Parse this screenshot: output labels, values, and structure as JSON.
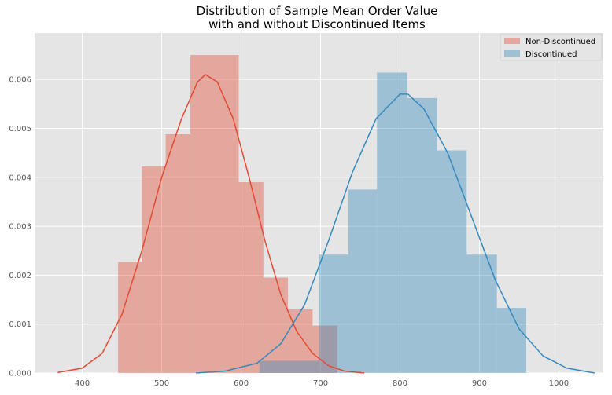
{
  "chart_data": {
    "type": "histogram",
    "title": [
      "Distribution of Sample Mean Order Value",
      "with and without Discontinued Items"
    ],
    "xlabel": "",
    "ylabel": "",
    "xlim": [
      340,
      1056
    ],
    "ylim": [
      0,
      0.00695
    ],
    "xticks": [
      400,
      500,
      600,
      700,
      800,
      900,
      1000
    ],
    "yticks": [
      0.0,
      0.001,
      0.002,
      0.003,
      0.004,
      0.005,
      0.006
    ],
    "ytick_labels": [
      "0.000",
      "0.001",
      "0.002",
      "0.003",
      "0.004",
      "0.005",
      "0.006"
    ],
    "grid": true,
    "legend_position": "top-right",
    "series": [
      {
        "name": "Non-Discontinued",
        "color": "#e24a33",
        "bins": [
          {
            "x0": 445,
            "x1": 475,
            "value": 0.00227
          },
          {
            "x0": 475,
            "x1": 505,
            "value": 0.00422
          },
          {
            "x0": 505,
            "x1": 536,
            "value": 0.00488
          },
          {
            "x0": 536,
            "x1": 597,
            "value": 0.0065
          },
          {
            "x0": 597,
            "x1": 628,
            "value": 0.0039
          },
          {
            "x0": 628,
            "x1": 659,
            "value": 0.00195
          },
          {
            "x0": 659,
            "x1": 690,
            "value": 0.0013
          },
          {
            "x0": 690,
            "x1": 721,
            "value": 0.00097
          }
        ],
        "kde": [
          [
            369,
            1e-05
          ],
          [
            400,
            0.0001
          ],
          [
            425,
            0.0004
          ],
          [
            450,
            0.0012
          ],
          [
            475,
            0.0025
          ],
          [
            500,
            0.004
          ],
          [
            525,
            0.0052
          ],
          [
            545,
            0.00595
          ],
          [
            555,
            0.0061
          ],
          [
            570,
            0.00595
          ],
          [
            590,
            0.0052
          ],
          [
            610,
            0.004
          ],
          [
            630,
            0.0027
          ],
          [
            650,
            0.0016
          ],
          [
            670,
            0.00085
          ],
          [
            690,
            0.0004
          ],
          [
            710,
            0.00015
          ],
          [
            730,
            4e-05
          ],
          [
            755,
            0.0
          ]
        ]
      },
      {
        "name": "Discontinued",
        "color": "#348abd",
        "bins": [
          {
            "x0": 623,
            "x1": 663,
            "value": 0.00025
          },
          {
            "x0": 663,
            "x1": 698,
            "value": 0.00025
          },
          {
            "x0": 698,
            "x1": 735,
            "value": 0.00242
          },
          {
            "x0": 735,
            "x1": 771,
            "value": 0.00375
          },
          {
            "x0": 771,
            "x1": 809,
            "value": 0.00614
          },
          {
            "x0": 809,
            "x1": 847,
            "value": 0.00562
          },
          {
            "x0": 847,
            "x1": 884,
            "value": 0.00455
          },
          {
            "x0": 884,
            "x1": 922,
            "value": 0.00242
          },
          {
            "x0": 922,
            "x1": 959,
            "value": 0.00133
          }
        ],
        "kde": [
          [
            543,
            0.0
          ],
          [
            580,
            4e-05
          ],
          [
            620,
            0.0002
          ],
          [
            650,
            0.0006
          ],
          [
            680,
            0.0014
          ],
          [
            710,
            0.0027
          ],
          [
            740,
            0.0041
          ],
          [
            770,
            0.0052
          ],
          [
            800,
            0.0057
          ],
          [
            810,
            0.0057
          ],
          [
            830,
            0.0054
          ],
          [
            860,
            0.0045
          ],
          [
            890,
            0.0032
          ],
          [
            920,
            0.0019
          ],
          [
            950,
            0.0009
          ],
          [
            980,
            0.00035
          ],
          [
            1010,
            0.0001
          ],
          [
            1045,
            0.0
          ]
        ]
      }
    ]
  }
}
